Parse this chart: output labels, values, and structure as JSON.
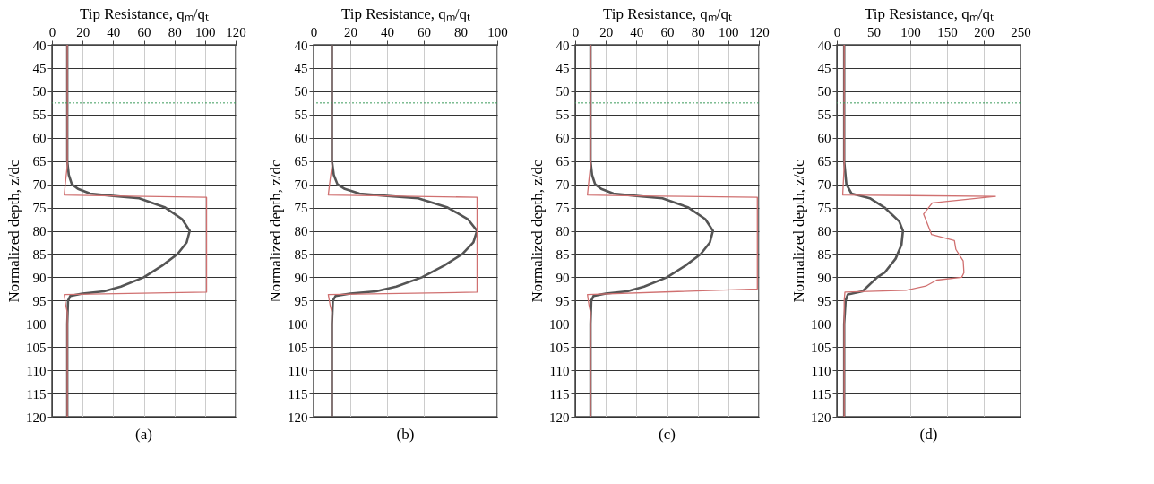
{
  "chart_data": [
    {
      "type": "line",
      "title": "(a)",
      "xlabel": "Tip Resistance, qₘ/qₜ",
      "ylabel": "Normalized depth, z/dc",
      "xlim": [
        0,
        120
      ],
      "xticks": [
        0,
        20,
        40,
        60,
        80,
        100,
        120
      ],
      "ylim": [
        120,
        40
      ],
      "yticks": [
        40,
        45,
        50,
        55,
        60,
        65,
        70,
        75,
        80,
        85,
        90,
        95,
        100,
        105,
        110,
        115,
        120
      ],
      "grid": true,
      "ref_lines": [
        {
          "axis": "y",
          "value": 52.5,
          "color": "#3a9a5a",
          "line_style": "dotted"
        }
      ],
      "series": [
        {
          "color": "#555555",
          "x": [
            10,
            10,
            11,
            13,
            17,
            25,
            40,
            57,
            74,
            85,
            90,
            88,
            82,
            72,
            60,
            45,
            34,
            20,
            12,
            10.5,
            10,
            10
          ],
          "values": [
            40,
            65,
            68,
            70,
            71,
            72,
            72.5,
            73,
            75,
            77.5,
            80,
            82.5,
            85,
            87.5,
            90,
            92,
            93,
            93.5,
            94,
            95,
            100,
            120
          ]
        },
        {
          "color": "#d07070",
          "x": [
            10,
            10,
            9,
            8,
            40,
            101,
            101,
            8,
            9,
            10,
            10
          ],
          "values": [
            40,
            66,
            69,
            72.3,
            72.5,
            72.8,
            93.2,
            93.7,
            96,
            97.5,
            120
          ]
        }
      ]
    },
    {
      "type": "line",
      "title": "(b)",
      "xlabel": "Tip Resistance, qₘ/qₜ",
      "ylabel": "Normalized depth, z/dc",
      "xlim": [
        0,
        100
      ],
      "xticks": [
        0,
        20,
        40,
        60,
        80,
        100
      ],
      "ylim": [
        120,
        40
      ],
      "yticks": [
        40,
        45,
        50,
        55,
        60,
        65,
        70,
        75,
        80,
        85,
        90,
        95,
        100,
        105,
        110,
        115,
        120
      ],
      "grid": true,
      "ref_lines": [
        {
          "axis": "y",
          "value": 52.5,
          "color": "#3a9a5a",
          "line_style": "dotted"
        }
      ],
      "series": [
        {
          "color": "#555555",
          "x": [
            10,
            10,
            11,
            13,
            17,
            25,
            40,
            57,
            73,
            84,
            89,
            87,
            81,
            71,
            59,
            45,
            34,
            20,
            12,
            10.5,
            10,
            10
          ],
          "values": [
            40,
            65,
            68,
            70,
            71,
            72,
            72.5,
            73,
            75,
            77.5,
            80,
            82.5,
            85,
            87.5,
            90,
            92,
            93,
            93.5,
            94,
            95,
            100,
            120
          ]
        },
        {
          "color": "#d07070",
          "x": [
            10,
            10,
            9,
            8,
            40,
            89,
            89,
            8,
            9,
            10,
            10
          ],
          "values": [
            40,
            66,
            69,
            72.3,
            72.5,
            72.8,
            93.2,
            93.7,
            96,
            97.5,
            120
          ]
        }
      ]
    },
    {
      "type": "line",
      "title": "(c)",
      "xlabel": "Tip Resistance, qₘ/qₜ",
      "ylabel": "Normalized depth, z/dc",
      "xlim": [
        0,
        120
      ],
      "xticks": [
        0,
        20,
        40,
        60,
        80,
        100,
        120
      ],
      "ylim": [
        120,
        40
      ],
      "yticks": [
        40,
        45,
        50,
        55,
        60,
        65,
        70,
        75,
        80,
        85,
        90,
        95,
        100,
        105,
        110,
        115,
        120
      ],
      "grid": true,
      "ref_lines": [
        {
          "axis": "y",
          "value": 52.5,
          "color": "#3a9a5a",
          "line_style": "dotted"
        }
      ],
      "series": [
        {
          "color": "#555555",
          "x": [
            10,
            10,
            11,
            13,
            17,
            25,
            40,
            57,
            74,
            85,
            90,
            88,
            82,
            72,
            60,
            45,
            34,
            20,
            12,
            10.5,
            10,
            10
          ],
          "values": [
            40,
            65,
            68,
            70,
            71,
            72,
            72.5,
            73,
            75,
            77.5,
            80,
            82.5,
            85,
            87.5,
            90,
            92,
            93,
            93.5,
            94,
            95,
            100,
            120
          ]
        },
        {
          "color": "#d07070",
          "x": [
            10,
            10,
            9,
            8,
            40,
            119,
            119,
            8,
            9,
            10,
            10
          ],
          "values": [
            40,
            66,
            69,
            72.3,
            72.5,
            72.8,
            92.5,
            93.7,
            96,
            97.5,
            120
          ]
        }
      ]
    },
    {
      "type": "line",
      "title": "(d)",
      "xlabel": "Tip Resistance, qₘ/qₜ",
      "ylabel": "Normalized depth, z/dc",
      "xlim": [
        0,
        250
      ],
      "xticks": [
        0,
        50,
        100,
        150,
        200,
        250
      ],
      "ylim": [
        120,
        40
      ],
      "yticks": [
        40,
        45,
        50,
        55,
        60,
        65,
        70,
        75,
        80,
        85,
        90,
        95,
        100,
        105,
        110,
        115,
        120
      ],
      "grid": true,
      "ref_lines": [
        {
          "axis": "y",
          "value": 52.5,
          "color": "#3a9a5a",
          "line_style": "dotted"
        }
      ],
      "series": [
        {
          "color": "#555555",
          "x": [
            10,
            10,
            13,
            20,
            45,
            65,
            85,
            90,
            88,
            80,
            65,
            55,
            35,
            15,
            12,
            10,
            10
          ],
          "values": [
            40,
            65,
            70,
            72,
            73,
            75,
            78,
            80,
            83,
            86,
            89,
            90,
            93,
            93.7,
            95,
            100,
            120
          ]
        },
        {
          "color": "#d07070",
          "x": [
            10,
            10,
            8,
            216,
            130,
            118,
            129,
            160,
            162,
            172,
            173,
            170,
            136,
            121,
            94,
            11,
            10,
            10
          ],
          "values": [
            40,
            66,
            72.3,
            72.6,
            74,
            76.4,
            80.8,
            82.1,
            84,
            86.5,
            89,
            90,
            90.6,
            91.9,
            92.8,
            93.2,
            95,
            120
          ]
        }
      ]
    }
  ]
}
